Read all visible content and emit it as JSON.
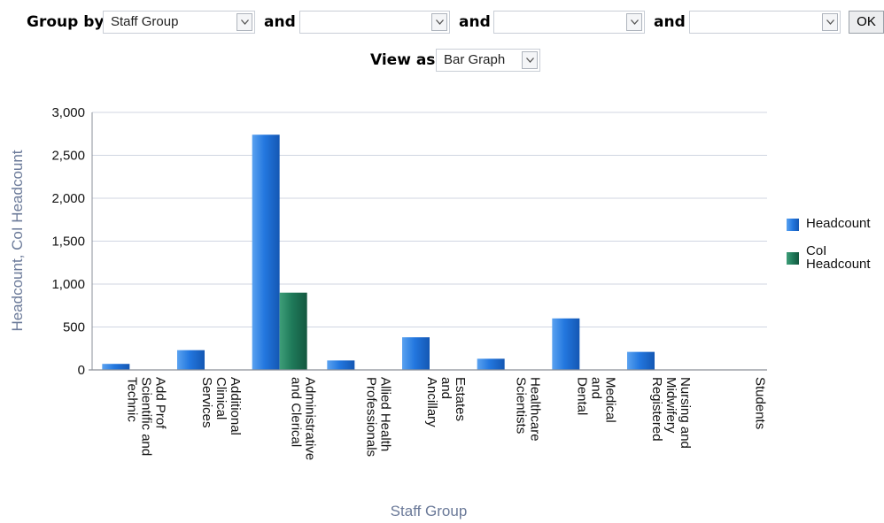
{
  "controls": {
    "group_by_label": "Group by",
    "group_by_1": "Staff Group",
    "and_label": "and",
    "group_by_2": "",
    "group_by_3": "",
    "group_by_4": "",
    "ok_label": "OK",
    "view_as_label": "View as",
    "view_as_value": "Bar Graph"
  },
  "colors": {
    "headcount": "#1f6fd6",
    "coi_headcount": "#1f7a5a",
    "axis_title": "#6b7a99",
    "grid": "#d0d6e2"
  },
  "chart_data": {
    "type": "bar",
    "xlabel": "Staff Group",
    "ylabel": "Headcount, CoI Headcount",
    "ylim": [
      0,
      3000
    ],
    "yticks": [
      "0",
      "500",
      "1,000",
      "1,500",
      "2,000",
      "2,500",
      "3,000"
    ],
    "grid": true,
    "legend_position": "right",
    "categories": [
      [
        "Add Prof",
        "Scientific and",
        "Technic"
      ],
      [
        "Additional",
        "Clinical",
        "Services"
      ],
      [
        "Administrative",
        "and Clerical"
      ],
      [
        "Allied Health",
        "Professionals"
      ],
      [
        "Estates",
        "and",
        "Ancillary"
      ],
      [
        "Healthcare",
        "Scientists"
      ],
      [
        "Medical",
        "and",
        "Dental"
      ],
      [
        "Nursing and",
        "Midwifery",
        "Registered"
      ],
      [
        "Students"
      ]
    ],
    "series": [
      {
        "name": "Headcount",
        "values": [
          70,
          230,
          2740,
          110,
          380,
          130,
          600,
          210,
          0
        ]
      },
      {
        "name": "CoI Headcount",
        "values": [
          0,
          0,
          900,
          0,
          0,
          0,
          0,
          0,
          0
        ]
      }
    ],
    "legend": [
      "Headcount",
      [
        "CoI",
        "Headcount"
      ]
    ]
  }
}
